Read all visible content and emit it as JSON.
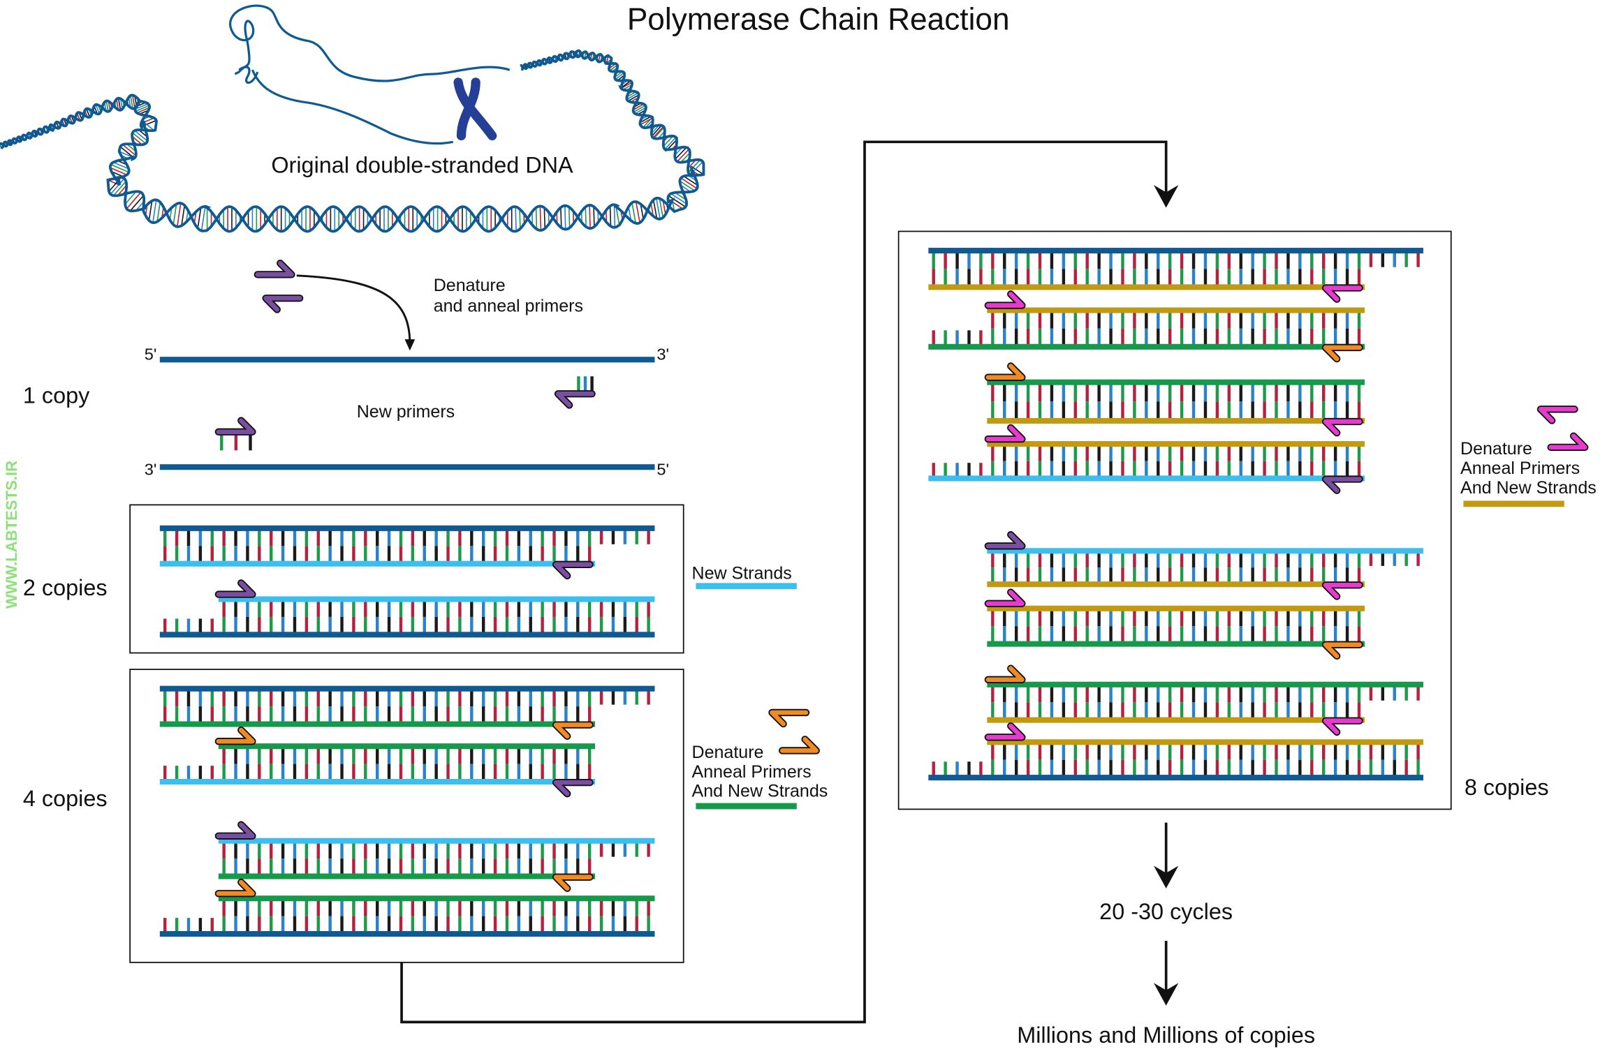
{
  "title": "Polymerase Chain Reaction",
  "original_dna_label": "Original double-stranded DNA",
  "step_denature": {
    "line1": "Denature",
    "line2": "and anneal primers"
  },
  "new_primers_label": "New primers",
  "ends": {
    "five": "5'",
    "three": "3'"
  },
  "copies": {
    "one": "1 copy",
    "two": "2 copies",
    "four": "4 copies",
    "eight": "8 copies"
  },
  "legend_new_strands": "New Strands",
  "legend_cycle": {
    "line1": "Denature",
    "line2": "Anneal Primers",
    "line3": "And New Strands"
  },
  "cycles_label": "20 -30 cycles",
  "result_label": "Millions and Millions of copies",
  "watermark": "WWW.LABTESTS.IR",
  "colors": {
    "original_strand": "#0f5a92",
    "new_strand_cycle1": "#3dbfee",
    "new_strand_cycle2": "#16994a",
    "new_strand_cycle3": "#c29a12",
    "primer_cycle1": "#7a4ea0",
    "primer_cycle2": "#f08a24",
    "primer_cycle3": "#e63ccd",
    "base_green": "#1f9a4b",
    "base_red": "#b5223f",
    "base_black": "#1a1a1a",
    "base_blue": "#2a82c8",
    "chromosome": "#243f95",
    "watermark": "#8ee07a"
  }
}
